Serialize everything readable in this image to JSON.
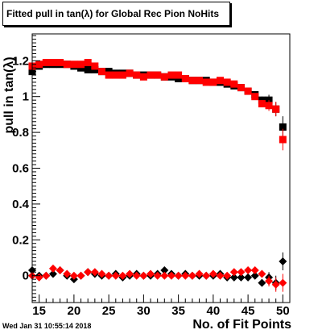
{
  "chart_data": {
    "type": "scatter",
    "title": "Fitted pull in tan(λ) for Global Rec Pion NoHits",
    "xlabel": "No. of Fit Points",
    "ylabel": "pull in tan(λ)",
    "xlim": [
      14,
      51
    ],
    "ylim": [
      -0.15,
      1.35
    ],
    "xticks": [
      15,
      20,
      25,
      30,
      35,
      40,
      45,
      50
    ],
    "yticks": [
      0,
      0.2,
      0.4,
      0.6,
      0.8,
      1,
      1.2
    ],
    "grid": false,
    "legend": "none",
    "timestamp": "Wed Jan 31 10:55:14 2018",
    "series": [
      {
        "color": "#000000",
        "marker": "square",
        "x": [
          14,
          15,
          16,
          17,
          18,
          19,
          20,
          21,
          22,
          23,
          24,
          25,
          26,
          27,
          28,
          29,
          30,
          31,
          32,
          33,
          34,
          35,
          36,
          37,
          38,
          39,
          40,
          41,
          42,
          43,
          44,
          45,
          46,
          47,
          48,
          49,
          50
        ],
        "y": [
          1.14,
          1.17,
          1.18,
          1.18,
          1.18,
          1.18,
          1.17,
          1.16,
          1.15,
          1.15,
          1.14,
          1.14,
          1.13,
          1.13,
          1.13,
          1.12,
          1.12,
          1.12,
          1.12,
          1.11,
          1.11,
          1.1,
          1.1,
          1.09,
          1.09,
          1.09,
          1.08,
          1.08,
          1.07,
          1.06,
          1.05,
          1.03,
          1.01,
          0.98,
          0.98,
          0.93,
          0.83
        ],
        "yerr": [
          0.03,
          0.01,
          0.01,
          0.01,
          0.01,
          0.01,
          0.01,
          0.01,
          0.01,
          0.01,
          0.01,
          0.01,
          0.01,
          0.01,
          0.01,
          0.01,
          0.01,
          0.01,
          0.01,
          0.01,
          0.01,
          0.01,
          0.01,
          0.01,
          0.01,
          0.01,
          0.01,
          0.01,
          0.01,
          0.01,
          0.01,
          0.01,
          0.01,
          0.02,
          0.03,
          0.04,
          0.06
        ]
      },
      {
        "color": "#ff0000",
        "marker": "square",
        "x": [
          14,
          15,
          16,
          17,
          18,
          19,
          20,
          21,
          22,
          23,
          24,
          25,
          26,
          27,
          28,
          29,
          30,
          31,
          32,
          33,
          34,
          35,
          36,
          37,
          38,
          39,
          40,
          41,
          42,
          43,
          44,
          45,
          46,
          47,
          48,
          49,
          50
        ],
        "y": [
          1.17,
          1.18,
          1.19,
          1.19,
          1.19,
          1.18,
          1.18,
          1.18,
          1.19,
          1.17,
          1.14,
          1.12,
          1.12,
          1.12,
          1.13,
          1.12,
          1.11,
          1.12,
          1.12,
          1.11,
          1.12,
          1.12,
          1.1,
          1.09,
          1.09,
          1.08,
          1.08,
          1.09,
          1.08,
          1.07,
          1.05,
          1.03,
          1.0,
          0.96,
          0.95,
          0.93,
          0.76
        ],
        "yerr": [
          0.02,
          0.01,
          0.01,
          0.01,
          0.01,
          0.01,
          0.01,
          0.01,
          0.01,
          0.01,
          0.01,
          0.01,
          0.01,
          0.01,
          0.01,
          0.01,
          0.01,
          0.01,
          0.01,
          0.01,
          0.01,
          0.01,
          0.01,
          0.01,
          0.01,
          0.01,
          0.01,
          0.01,
          0.01,
          0.01,
          0.01,
          0.01,
          0.01,
          0.02,
          0.03,
          0.04,
          0.06
        ]
      },
      {
        "color": "#000000",
        "marker": "diamond",
        "x": [
          14,
          15,
          16,
          17,
          18,
          19,
          20,
          21,
          22,
          23,
          24,
          25,
          26,
          27,
          28,
          29,
          30,
          31,
          32,
          33,
          34,
          35,
          36,
          37,
          38,
          39,
          40,
          41,
          42,
          43,
          44,
          45,
          46,
          47,
          48,
          49,
          50
        ],
        "y": [
          0.03,
          0.0,
          0.0,
          0.01,
          0.03,
          0.0,
          -0.02,
          0.0,
          0.02,
          0.01,
          0.0,
          0.0,
          0.01,
          -0.01,
          0.0,
          0.01,
          0.0,
          0.0,
          0.01,
          0.03,
          0.01,
          0.0,
          0.01,
          0.0,
          0.0,
          0.0,
          0.0,
          0.01,
          -0.01,
          -0.01,
          -0.01,
          -0.01,
          0.0,
          -0.04,
          -0.01,
          -0.04,
          0.08
        ],
        "yerr": [
          0.02,
          0.01,
          0.01,
          0.01,
          0.01,
          0.01,
          0.01,
          0.01,
          0.01,
          0.01,
          0.01,
          0.01,
          0.01,
          0.01,
          0.01,
          0.01,
          0.01,
          0.01,
          0.01,
          0.01,
          0.01,
          0.01,
          0.01,
          0.01,
          0.01,
          0.01,
          0.01,
          0.01,
          0.01,
          0.01,
          0.01,
          0.01,
          0.01,
          0.02,
          0.03,
          0.04,
          0.05
        ]
      },
      {
        "color": "#ff0000",
        "marker": "diamond",
        "x": [
          14,
          15,
          16,
          17,
          18,
          19,
          20,
          21,
          22,
          23,
          24,
          25,
          26,
          27,
          28,
          29,
          30,
          31,
          32,
          33,
          34,
          35,
          36,
          37,
          38,
          39,
          40,
          41,
          42,
          43,
          44,
          45,
          46,
          47,
          48,
          49,
          50
        ],
        "y": [
          0.0,
          -0.01,
          0.0,
          0.04,
          0.03,
          0.01,
          0.0,
          0.0,
          0.02,
          0.02,
          0.01,
          0.0,
          0.0,
          0.0,
          0.01,
          0.0,
          0.0,
          0.01,
          0.0,
          0.0,
          0.0,
          0.0,
          0.0,
          0.0,
          0.01,
          0.0,
          0.01,
          0.0,
          0.0,
          0.02,
          0.02,
          0.03,
          0.03,
          0.01,
          -0.03,
          -0.05,
          -0.04
        ],
        "yerr": [
          0.02,
          0.01,
          0.01,
          0.01,
          0.01,
          0.01,
          0.01,
          0.01,
          0.01,
          0.01,
          0.01,
          0.01,
          0.01,
          0.01,
          0.01,
          0.01,
          0.01,
          0.01,
          0.01,
          0.01,
          0.01,
          0.01,
          0.01,
          0.01,
          0.01,
          0.01,
          0.01,
          0.01,
          0.01,
          0.01,
          0.01,
          0.01,
          0.01,
          0.02,
          0.03,
          0.04,
          0.05
        ]
      }
    ]
  }
}
